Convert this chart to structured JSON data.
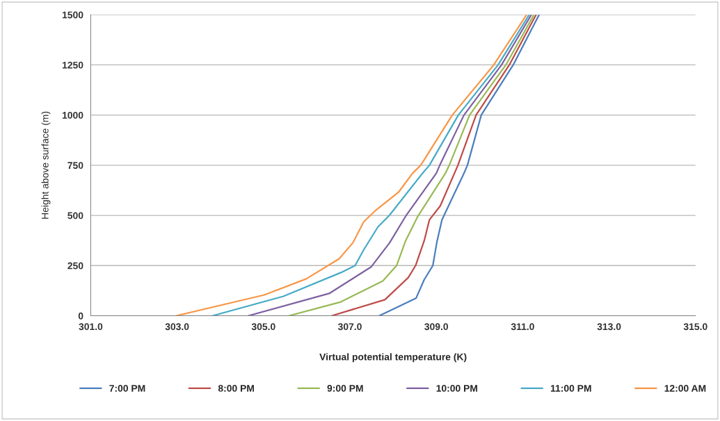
{
  "chart_data": {
    "type": "line",
    "xlabel": "Virtual potential temperature (K)",
    "ylabel": "Height above surface (m)",
    "xlim": [
      301,
      315
    ],
    "xticks": [
      {
        "value": 301,
        "label": "301.0"
      },
      {
        "value": 303,
        "label": "303.0"
      },
      {
        "value": 305,
        "label": "305.0"
      },
      {
        "value": 307,
        "label": "307.0"
      },
      {
        "value": 309,
        "label": "309.0"
      },
      {
        "value": 311,
        "label": "311.0"
      },
      {
        "value": 313,
        "label": "313.0"
      },
      {
        "value": 315,
        "label": "315.0"
      }
    ],
    "ylim": [
      0,
      1500
    ],
    "yticks": [
      0,
      250,
      500,
      750,
      1000,
      1250,
      1500
    ],
    "grid": "y",
    "legend": "bottom",
    "marker": "none",
    "line_style": "solid",
    "series": [
      {
        "name": "7:00 PM",
        "color": "#4a7ebb",
        "x": [
          307.68,
          308.53,
          308.72,
          308.92,
          309.01,
          309.13,
          309.64,
          309.72,
          310.04,
          310.78,
          311.38
        ],
        "values": [
          0,
          87,
          180,
          250,
          364,
          478,
          710,
          750,
          1000,
          1250,
          1500
        ]
      },
      {
        "name": "8:00 PM",
        "color": "#be4b48",
        "x": [
          306.58,
          307.81,
          308.35,
          308.52,
          308.72,
          308.84,
          309.09,
          309.42,
          309.5,
          309.92,
          310.69,
          311.31
        ],
        "values": [
          0,
          80,
          190,
          250,
          374,
          478,
          547,
          710,
          750,
          1000,
          1250,
          1500
        ]
      },
      {
        "name": "9:00 PM",
        "color": "#98b954",
        "x": [
          305.59,
          306.79,
          307.76,
          308.08,
          308.29,
          308.56,
          309.21,
          309.3,
          309.77,
          310.61,
          311.26
        ],
        "values": [
          0,
          69,
          173,
          250,
          374,
          491,
          710,
          750,
          1000,
          1250,
          1500
        ]
      },
      {
        "name": "10:00 PM",
        "color": "#7d60a0",
        "x": [
          304.65,
          306.52,
          307.49,
          307.92,
          308.29,
          309.0,
          309.08,
          309.64,
          310.51,
          311.2
        ],
        "values": [
          0,
          111,
          243,
          364,
          496,
          710,
          750,
          1000,
          1250,
          1500
        ]
      },
      {
        "name": "11:00 PM",
        "color": "#46aac5",
        "x": [
          303.82,
          305.46,
          306.79,
          307.12,
          307.32,
          307.65,
          307.92,
          308.68,
          308.84,
          309.51,
          310.43,
          311.15
        ],
        "values": [
          0,
          97,
          215,
          250,
          329,
          443,
          502,
          710,
          750,
          1000,
          1250,
          1500
        ]
      },
      {
        "name": "12:00 AM",
        "color": "#f79646",
        "x": [
          302.98,
          305.02,
          305.99,
          306.75,
          307.07,
          307.32,
          307.6,
          308.13,
          308.45,
          308.64,
          309.37,
          310.33,
          311.09
        ],
        "values": [
          0,
          104,
          184,
          284,
          364,
          468,
          526,
          617,
          710,
          750,
          1000,
          1250,
          1500
        ]
      }
    ]
  }
}
